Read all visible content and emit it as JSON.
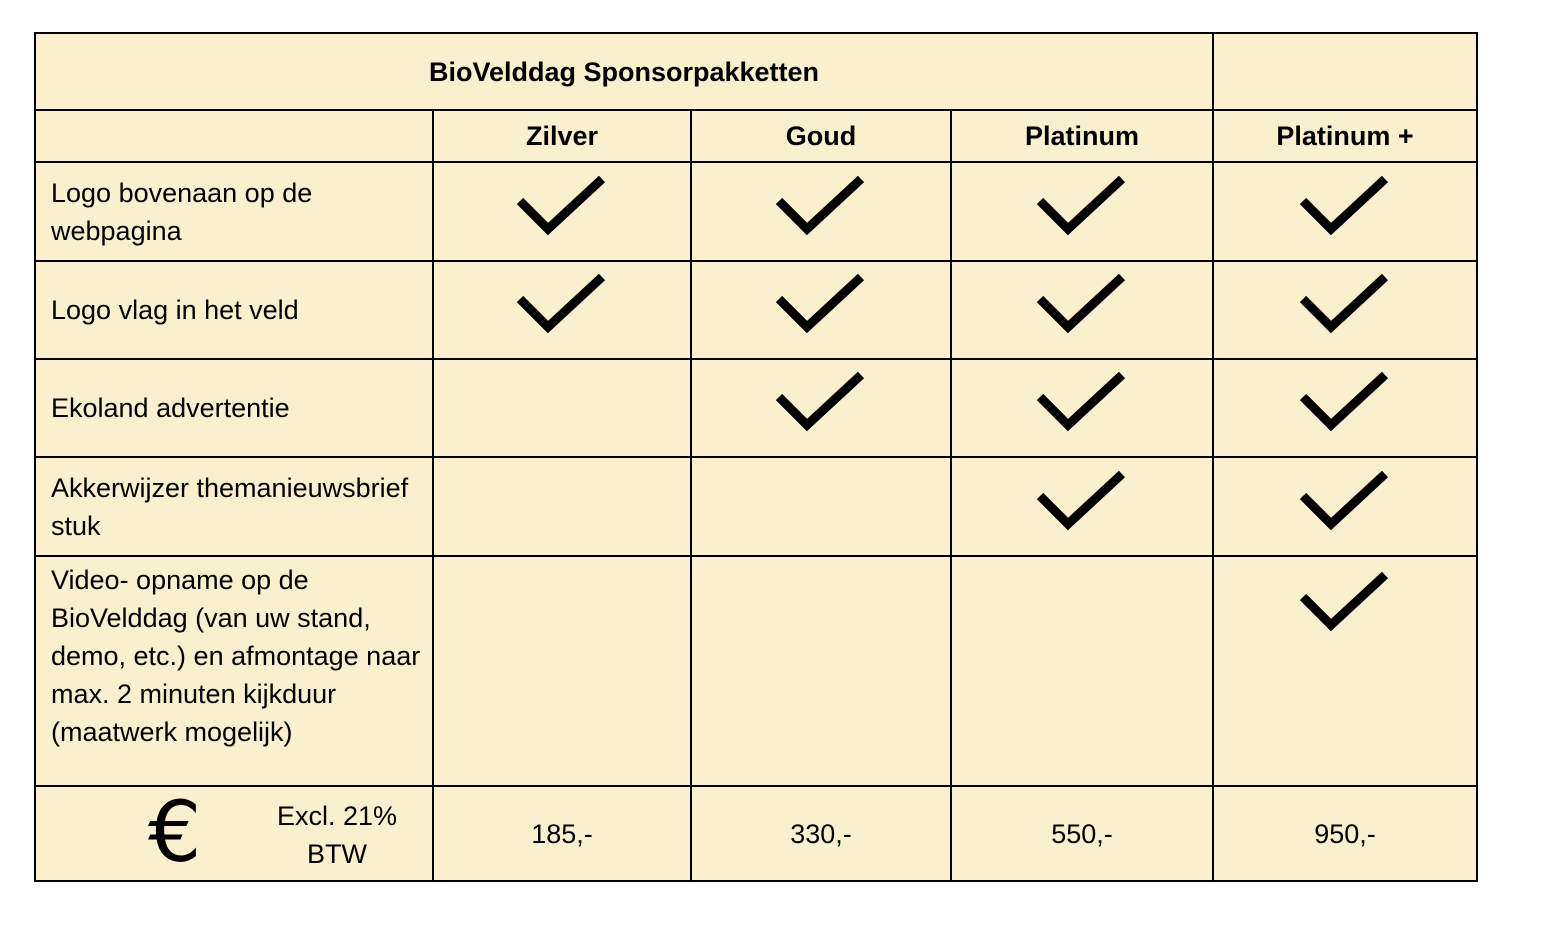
{
  "title": "BioVelddag Sponsorpakketten",
  "packages": [
    "Zilver",
    "Goud",
    "Platinum",
    "Platinum +"
  ],
  "features": [
    {
      "label": "Logo bovenaan op de webpagina",
      "included": [
        true,
        true,
        true,
        true
      ]
    },
    {
      "label": "Logo vlag in het veld",
      "included": [
        true,
        true,
        true,
        true
      ]
    },
    {
      "label": "Ekoland advertentie",
      "included": [
        false,
        true,
        true,
        true
      ]
    },
    {
      "label": "Akkerwijzer themanieuwsbrief stuk",
      "included": [
        false,
        false,
        true,
        true
      ]
    },
    {
      "label": "Video- opname op de BioVelddag (van uw stand, demo, etc.) en afmontage naar max. 2 minuten kijkduur (maatwerk mogelijk)",
      "included": [
        false,
        false,
        false,
        true
      ]
    }
  ],
  "pricing": {
    "currency_symbol": "€",
    "vat_note_line1": "Excl. 21%",
    "vat_note_line2": "BTW",
    "prices": [
      "185,-",
      "330,-",
      "550,-",
      "950,-"
    ]
  },
  "icons": {
    "included": "check-icon"
  },
  "colors": {
    "cell_background": "#fbf0cd",
    "border": "#000000",
    "check": "#000000"
  }
}
